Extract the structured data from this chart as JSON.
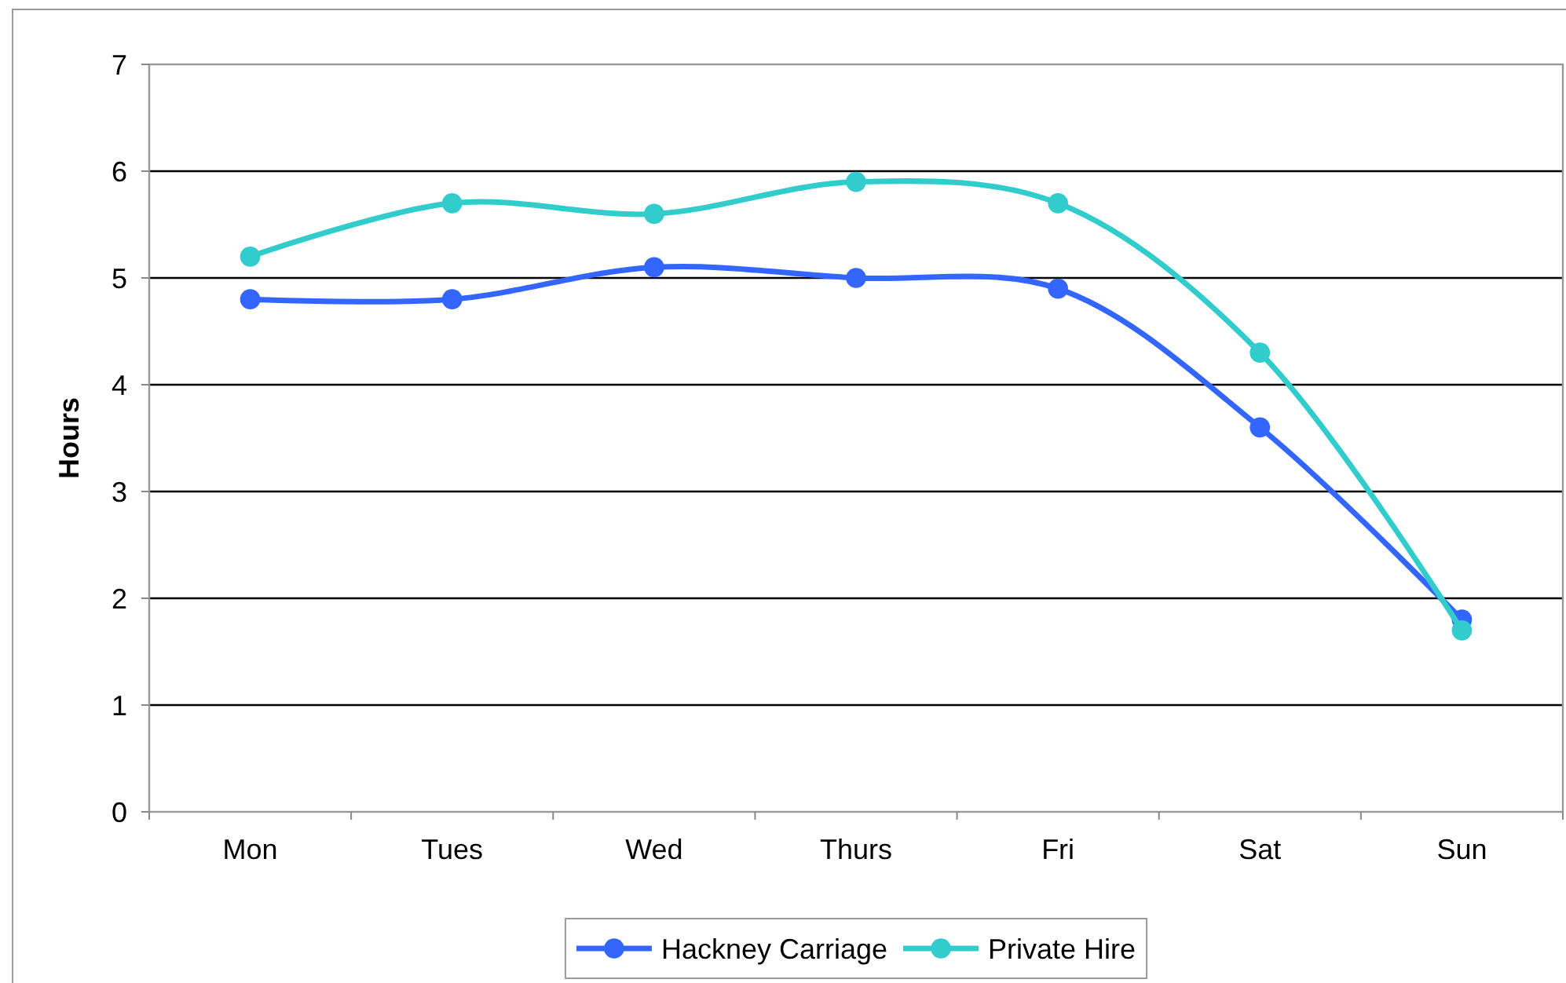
{
  "chart_data": {
    "type": "line",
    "ylabel": "Hours",
    "categories": [
      "Mon",
      "Tues",
      "Wed",
      "Thurs",
      "Fri",
      "Sat",
      "Sun"
    ],
    "series": [
      {
        "name": "Hackney Carriage",
        "color": "#3366ff",
        "values": [
          4.8,
          4.8,
          5.1,
          5.0,
          4.9,
          3.6,
          1.8
        ]
      },
      {
        "name": "Private Hire",
        "color": "#33cccc",
        "values": [
          5.2,
          5.7,
          5.6,
          5.9,
          5.7,
          4.3,
          1.7
        ]
      }
    ],
    "ylim": [
      0,
      7
    ],
    "yticks": [
      0,
      1,
      2,
      3,
      4,
      5,
      6,
      7
    ],
    "grid": "y",
    "legend": "bottom",
    "marker": "circle",
    "line_style": "solid"
  }
}
